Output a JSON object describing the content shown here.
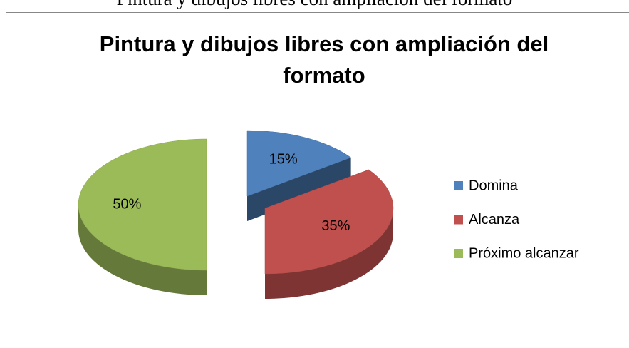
{
  "caption": "Pintura y dibujos libres con ampliación del formato",
  "chart_data": {
    "type": "pie",
    "title": "Pintura y dibujos libres con ampliación del formato",
    "categories": [
      "Domina",
      "Alcanza",
      "Próximo alcanzar"
    ],
    "values": [
      15,
      35,
      50
    ],
    "value_labels": [
      "15%",
      "35%",
      "50%"
    ],
    "colors": [
      "#4f81bd",
      "#c0504d",
      "#9bbb59"
    ],
    "legend": "right"
  }
}
